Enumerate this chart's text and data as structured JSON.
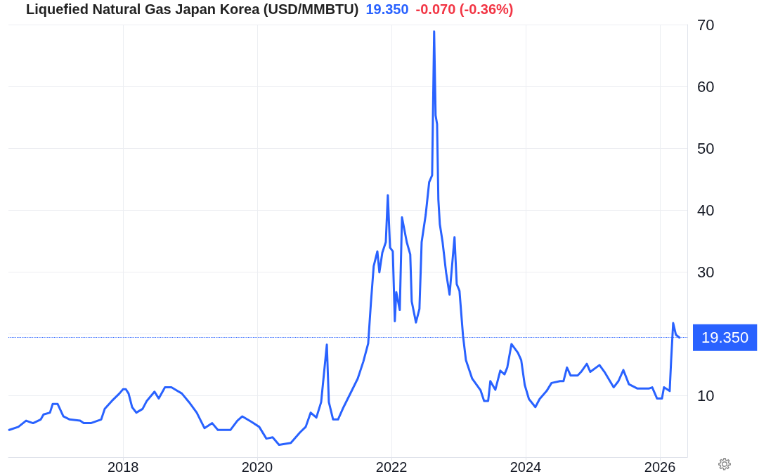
{
  "chart_data": {
    "type": "line",
    "title": "Liquefied Natural Gas Japan Korea (USD/MMBTU)",
    "annotations": [
      "19.350",
      "-0.070 (-0.36%)"
    ],
    "x": [
      "2016-04-21",
      "2016-06-10",
      "2016-07-22",
      "2016-08-29",
      "2016-10-10",
      "2016-10-25",
      "2016-11-29",
      "2016-12-14",
      "2017-01-10",
      "2017-02-10",
      "2017-03-16",
      "2017-05-12",
      "2017-06-01",
      "2017-07-09",
      "2017-09-04",
      "2017-09-23",
      "2017-11-01",
      "2017-12-12",
      "2018-01-01",
      "2018-01-16",
      "2018-01-31",
      "2018-02-19",
      "2018-03-14",
      "2018-04-17",
      "2018-05-10",
      "2018-06-21",
      "2018-07-14",
      "2018-08-17",
      "2018-09-21",
      "2018-11-17",
      "2018-12-26",
      "2019-02-06",
      "2019-03-20",
      "2019-05-01",
      "2019-06-01",
      "2019-08-08",
      "2019-09-15",
      "2019-10-12",
      "2019-12-01",
      "2020-01-12",
      "2020-02-20",
      "2020-03-25",
      "2020-04-29",
      "2020-07-02",
      "2020-08-21",
      "2020-09-21",
      "2020-10-18",
      "2020-11-18",
      "2020-12-14",
      "2021-01-14",
      "2021-01-25",
      "2021-02-17",
      "2021-03-16",
      "2021-04-15",
      "2021-05-27",
      "2021-07-01",
      "2021-08-01",
      "2021-08-27",
      "2021-09-11",
      "2021-09-26",
      "2021-10-16",
      "2021-10-27",
      "2021-11-12",
      "2021-12-01",
      "2021-12-12",
      "2021-12-24",
      "2022-01-08",
      "2022-01-19",
      "2022-01-27",
      "2022-02-15",
      "2022-02-27",
      "2022-03-25",
      "2022-04-13",
      "2022-04-21",
      "2022-05-14",
      "2022-06-02",
      "2022-06-14",
      "2022-07-06",
      "2022-07-25",
      "2022-08-10",
      "2022-08-21",
      "2022-08-29",
      "2022-09-06",
      "2022-09-13",
      "2022-09-21",
      "2022-10-06",
      "2022-10-25",
      "2022-11-13",
      "2022-12-10",
      "2022-12-22",
      "2023-01-06",
      "2023-01-25",
      "2023-02-10",
      "2023-03-16",
      "2023-05-01",
      "2023-05-20",
      "2023-06-11",
      "2023-06-23",
      "2023-07-20",
      "2023-08-16",
      "2023-09-08",
      "2023-09-23",
      "2023-10-16",
      "2023-11-20",
      "2023-12-08",
      "2023-12-27",
      "2024-01-19",
      "2024-02-23",
      "2024-03-17",
      "2024-04-24",
      "2024-05-21",
      "2024-07-06",
      "2024-07-25",
      "2024-08-13",
      "2024-09-02",
      "2024-10-10",
      "2024-10-29",
      "2024-11-29",
      "2024-12-18",
      "2025-02-06",
      "2025-03-05",
      "2025-04-24",
      "2025-05-20",
      "2025-06-16",
      "2025-07-16",
      "2025-09-01",
      "2025-11-01",
      "2025-11-20",
      "2025-12-16",
      "2026-01-12",
      "2026-01-23",
      "2026-02-23",
      "2026-03-03",
      "2026-03-14",
      "2026-03-29",
      "2026-04-17"
    ],
    "series": [
      {
        "color": "#2962ff",
        "values": [
          4.4,
          4.9,
          5.9,
          5.5,
          6.1,
          6.9,
          7.2,
          8.6,
          8.6,
          6.6,
          6.1,
          5.9,
          5.5,
          5.5,
          6.1,
          7.8,
          9.1,
          10.3,
          11.0,
          11.0,
          10.3,
          8.1,
          7.2,
          7.8,
          9.1,
          10.6,
          9.5,
          11.3,
          11.3,
          10.3,
          8.9,
          7.2,
          4.7,
          5.5,
          4.4,
          4.4,
          5.9,
          6.6,
          5.7,
          4.9,
          3.0,
          3.2,
          2.0,
          2.3,
          4.0,
          4.9,
          7.2,
          6.4,
          8.9,
          18.2,
          8.9,
          6.1,
          6.1,
          8.1,
          10.6,
          12.7,
          15.5,
          18.4,
          25.0,
          30.9,
          33.3,
          29.9,
          33.1,
          34.8,
          42.4,
          33.9,
          33.3,
          22.0,
          26.7,
          23.8,
          38.8,
          34.8,
          32.8,
          25.2,
          21.8,
          24.0,
          34.8,
          39.2,
          44.5,
          45.6,
          68.9,
          55.3,
          53.9,
          41.7,
          37.7,
          34.8,
          29.9,
          26.3,
          35.6,
          28.0,
          26.9,
          19.7,
          15.7,
          12.7,
          10.8,
          9.1,
          9.1,
          12.3,
          10.9,
          14.0,
          13.4,
          14.5,
          18.3,
          16.9,
          15.7,
          11.7,
          9.4,
          8.1,
          9.4,
          10.7,
          12.0,
          12.3,
          12.3,
          14.5,
          13.2,
          13.2,
          13.8,
          15.1,
          13.8,
          14.9,
          13.8,
          11.3,
          12.3,
          14.1,
          11.8,
          11.1,
          11.1,
          11.3,
          9.5,
          9.5,
          11.3,
          10.7,
          15.7,
          21.7,
          19.8,
          19.35
        ]
      }
    ],
    "xlim": [
      "2016-04-17",
      "2026-05-30"
    ],
    "xticks": [
      "2018",
      "2020",
      "2022",
      "2024",
      "2026"
    ],
    "ylim": [
      0,
      70
    ],
    "yticks": [
      10,
      {
        "value": 20,
        "label": null
      },
      30,
      40,
      50,
      60,
      70
    ],
    "ref_lines": [
      {
        "axis": "y",
        "value": 19.35,
        "label": "19.350",
        "color": "#2962ff",
        "line_style": "dotted"
      }
    ],
    "grid": true
  }
}
